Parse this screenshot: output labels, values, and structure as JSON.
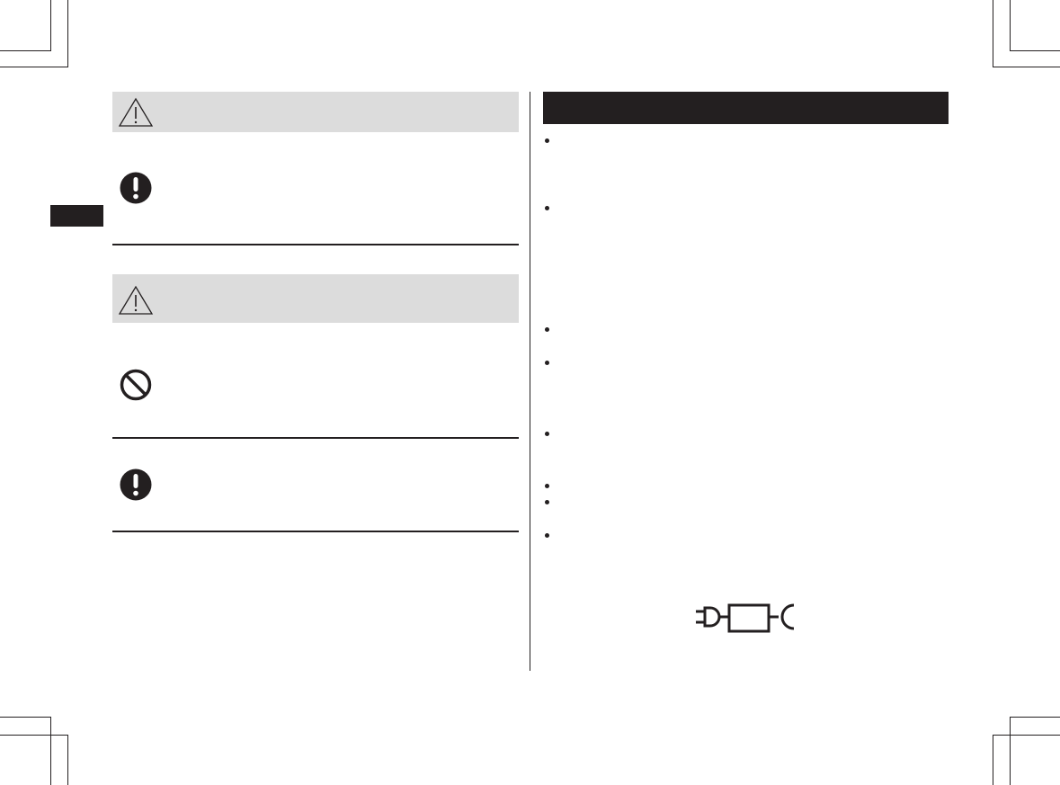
{
  "colors": {
    "ink": "#231f20",
    "caution_band": "#dcdcdc",
    "page": "#ffffff"
  },
  "left_column": {
    "sections": [
      {
        "header_icon": "warning-triangle-icon",
        "items": [
          {
            "icon": "mandatory-action-icon"
          }
        ]
      },
      {
        "header_icon": "warning-triangle-icon",
        "items": [
          {
            "icon": "prohibition-icon"
          },
          {
            "icon": "mandatory-action-icon"
          }
        ]
      }
    ]
  },
  "right_column": {
    "bullet_count": 8,
    "figure_icon": "plug-adapter-socket-icon"
  },
  "side_tab": {
    "icon": "section-tab"
  }
}
